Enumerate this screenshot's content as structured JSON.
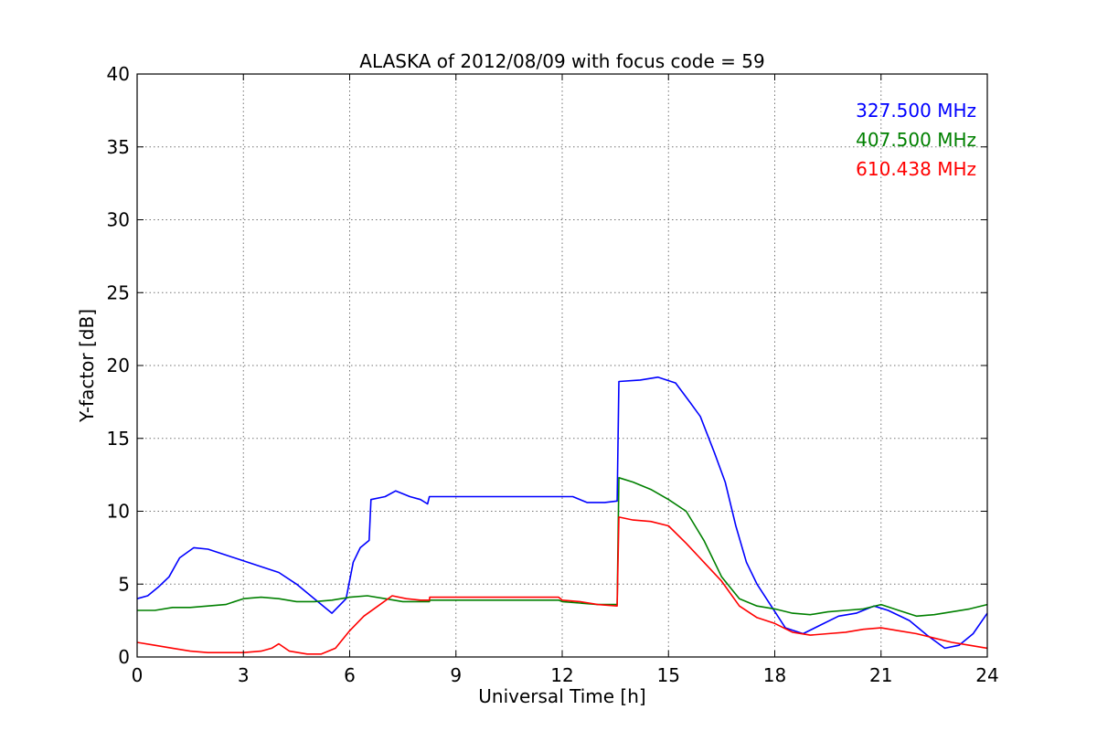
{
  "chart_data": {
    "type": "line",
    "title": "ALASKA of 2012/08/09 with focus code = 59",
    "xlabel": "Universal Time [h]",
    "ylabel": "Y-factor [dB]",
    "xlim": [
      0,
      24
    ],
    "ylim": [
      0,
      40
    ],
    "xticks": [
      0,
      3,
      6,
      9,
      12,
      15,
      18,
      21,
      24
    ],
    "yticks": [
      0,
      5,
      10,
      15,
      20,
      25,
      30,
      35,
      40
    ],
    "grid": true,
    "legend_position": "top-right",
    "series": [
      {
        "name": "327.500 MHz",
        "color": "#0000ff",
        "points": [
          [
            0,
            4.0
          ],
          [
            0.3,
            4.2
          ],
          [
            0.6,
            4.8
          ],
          [
            0.9,
            5.5
          ],
          [
            1.2,
            6.8
          ],
          [
            1.6,
            7.5
          ],
          [
            2.0,
            7.4
          ],
          [
            2.5,
            7.0
          ],
          [
            3.0,
            6.6
          ],
          [
            3.5,
            6.2
          ],
          [
            4.0,
            5.8
          ],
          [
            4.5,
            5.0
          ],
          [
            5.0,
            4.0
          ],
          [
            5.5,
            3.0
          ],
          [
            5.9,
            4.0
          ],
          [
            6.1,
            6.5
          ],
          [
            6.3,
            7.5
          ],
          [
            6.55,
            8.0
          ],
          [
            6.6,
            10.8
          ],
          [
            7.0,
            11.0
          ],
          [
            7.3,
            11.4
          ],
          [
            7.7,
            11.0
          ],
          [
            8.0,
            10.8
          ],
          [
            8.2,
            10.5
          ],
          [
            8.25,
            11.0
          ],
          [
            11.9,
            11.0
          ],
          [
            12.3,
            11.0
          ],
          [
            12.7,
            10.6
          ],
          [
            13.2,
            10.6
          ],
          [
            13.55,
            10.7
          ],
          [
            13.6,
            18.9
          ],
          [
            14.2,
            19.0
          ],
          [
            14.7,
            19.2
          ],
          [
            15.2,
            18.8
          ],
          [
            15.6,
            17.5
          ],
          [
            15.9,
            16.5
          ],
          [
            16.3,
            14.0
          ],
          [
            16.6,
            12.0
          ],
          [
            16.9,
            9.0
          ],
          [
            17.2,
            6.5
          ],
          [
            17.5,
            5.0
          ],
          [
            17.9,
            3.5
          ],
          [
            18.3,
            2.0
          ],
          [
            18.8,
            1.6
          ],
          [
            19.3,
            2.2
          ],
          [
            19.8,
            2.8
          ],
          [
            20.3,
            3.0
          ],
          [
            20.8,
            3.5
          ],
          [
            21.2,
            3.2
          ],
          [
            21.8,
            2.5
          ],
          [
            22.3,
            1.5
          ],
          [
            22.8,
            0.6
          ],
          [
            23.2,
            0.8
          ],
          [
            23.6,
            1.6
          ],
          [
            24,
            3.0
          ]
        ]
      },
      {
        "name": "407.500 MHz",
        "color": "#008000",
        "points": [
          [
            0,
            3.2
          ],
          [
            0.5,
            3.2
          ],
          [
            1.0,
            3.4
          ],
          [
            1.5,
            3.4
          ],
          [
            2.0,
            3.5
          ],
          [
            2.5,
            3.6
          ],
          [
            3.0,
            4.0
          ],
          [
            3.5,
            4.1
          ],
          [
            4.0,
            4.0
          ],
          [
            4.5,
            3.8
          ],
          [
            5.0,
            3.8
          ],
          [
            5.5,
            3.9
          ],
          [
            6.0,
            4.1
          ],
          [
            6.5,
            4.2
          ],
          [
            7.0,
            4.0
          ],
          [
            7.5,
            3.8
          ],
          [
            8.0,
            3.8
          ],
          [
            8.25,
            3.8
          ],
          [
            8.26,
            3.9
          ],
          [
            11.9,
            3.9
          ],
          [
            12.0,
            3.8
          ],
          [
            12.5,
            3.7
          ],
          [
            13.0,
            3.6
          ],
          [
            13.55,
            3.6
          ],
          [
            13.6,
            12.3
          ],
          [
            14.0,
            12.0
          ],
          [
            14.5,
            11.5
          ],
          [
            15.0,
            10.8
          ],
          [
            15.5,
            10.0
          ],
          [
            16.0,
            8.0
          ],
          [
            16.5,
            5.5
          ],
          [
            17.0,
            4.0
          ],
          [
            17.5,
            3.5
          ],
          [
            18.0,
            3.3
          ],
          [
            18.5,
            3.0
          ],
          [
            19.0,
            2.9
          ],
          [
            19.5,
            3.1
          ],
          [
            20.0,
            3.2
          ],
          [
            20.5,
            3.3
          ],
          [
            21.0,
            3.6
          ],
          [
            21.5,
            3.2
          ],
          [
            22.0,
            2.8
          ],
          [
            22.5,
            2.9
          ],
          [
            23.0,
            3.1
          ],
          [
            23.5,
            3.3
          ],
          [
            24,
            3.6
          ]
        ]
      },
      {
        "name": "610.438 MHz",
        "color": "#ff0000",
        "points": [
          [
            0,
            1.0
          ],
          [
            0.5,
            0.8
          ],
          [
            1.0,
            0.6
          ],
          [
            1.5,
            0.4
          ],
          [
            2.0,
            0.3
          ],
          [
            2.5,
            0.3
          ],
          [
            3.0,
            0.3
          ],
          [
            3.5,
            0.4
          ],
          [
            3.8,
            0.6
          ],
          [
            4.0,
            0.9
          ],
          [
            4.3,
            0.4
          ],
          [
            4.8,
            0.2
          ],
          [
            5.2,
            0.2
          ],
          [
            5.6,
            0.6
          ],
          [
            6.0,
            1.8
          ],
          [
            6.4,
            2.8
          ],
          [
            6.8,
            3.5
          ],
          [
            7.2,
            4.2
          ],
          [
            7.6,
            4.0
          ],
          [
            8.0,
            3.9
          ],
          [
            8.25,
            3.9
          ],
          [
            8.26,
            4.1
          ],
          [
            11.9,
            4.1
          ],
          [
            12.0,
            3.9
          ],
          [
            12.5,
            3.8
          ],
          [
            13.0,
            3.6
          ],
          [
            13.55,
            3.5
          ],
          [
            13.6,
            9.6
          ],
          [
            14.0,
            9.4
          ],
          [
            14.5,
            9.3
          ],
          [
            15.0,
            9.0
          ],
          [
            15.5,
            7.8
          ],
          [
            16.0,
            6.5
          ],
          [
            16.5,
            5.2
          ],
          [
            17.0,
            3.5
          ],
          [
            17.5,
            2.7
          ],
          [
            18.0,
            2.3
          ],
          [
            18.5,
            1.7
          ],
          [
            19.0,
            1.5
          ],
          [
            19.5,
            1.6
          ],
          [
            20.0,
            1.7
          ],
          [
            20.5,
            1.9
          ],
          [
            21.0,
            2.0
          ],
          [
            21.5,
            1.8
          ],
          [
            22.0,
            1.6
          ],
          [
            22.5,
            1.3
          ],
          [
            23.0,
            1.0
          ],
          [
            23.5,
            0.8
          ],
          [
            24,
            0.6
          ]
        ]
      }
    ]
  }
}
